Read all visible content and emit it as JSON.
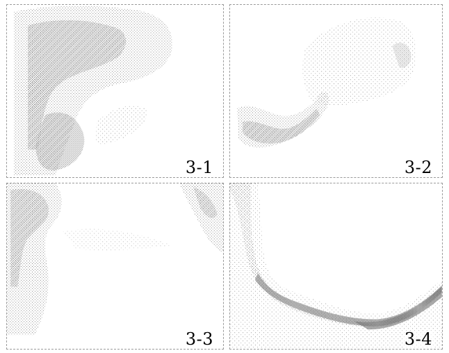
{
  "figure": {
    "panels": [
      {
        "label": "3-1"
      },
      {
        "label": "3-2"
      },
      {
        "label": "3-3"
      },
      {
        "label": "3-4"
      }
    ]
  },
  "colors": {
    "stipple": "#8c8c8c",
    "dark_band": "#3a3a3a",
    "border": "#9a9a9a",
    "background": "#ffffff"
  }
}
